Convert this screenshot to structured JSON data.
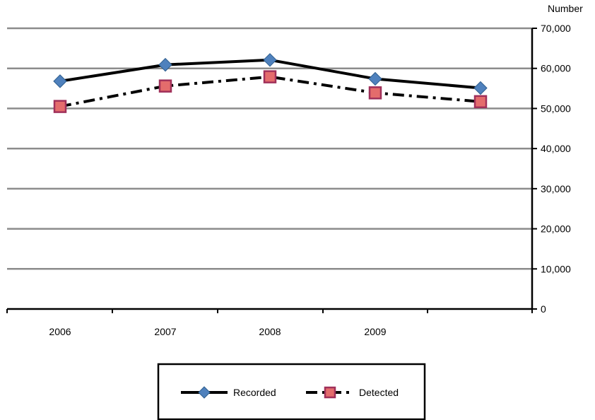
{
  "chart_data": {
    "type": "line",
    "y_axis_title": "Number",
    "categories": [
      "2006",
      "2007",
      "2008",
      "2009",
      ""
    ],
    "ylim": [
      0,
      70000
    ],
    "y_ticks": [
      0,
      10000,
      20000,
      30000,
      40000,
      50000,
      60000,
      70000
    ],
    "y_tick_labels": [
      "0",
      "10,000",
      "20,000",
      "30,000",
      "40,000",
      "50,000",
      "60,000",
      "70,000"
    ],
    "y_axis_side": "right",
    "grid": true,
    "legend_position": "bottom",
    "series": [
      {
        "name": "Recorded",
        "values": [
          56800,
          60900,
          62100,
          57400,
          55100
        ],
        "line_color": "#000000",
        "line_style": "solid",
        "marker": "diamond",
        "marker_color": "#4f81bd"
      },
      {
        "name": "Detected",
        "values": [
          50500,
          55600,
          57900,
          53900,
          51700
        ],
        "line_color": "#000000",
        "line_style": "dash-dot",
        "marker": "square",
        "marker_color": "#e46c6c",
        "marker_border": "#a0305a"
      }
    ]
  }
}
